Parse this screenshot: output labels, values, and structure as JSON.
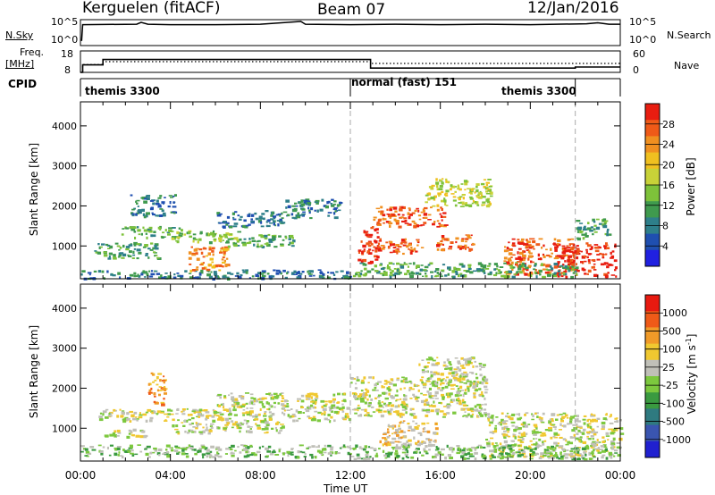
{
  "header": {
    "station": "Kerguelen (fitACF)",
    "beam": "Beam 07",
    "date": "12/Jan/2016"
  },
  "labels": {
    "nsky": "N.Sky",
    "nsearch": "N.Search",
    "freq": "Freq.",
    "mhz": "[MHz]",
    "nave": "Nave",
    "cpid": "CPID",
    "time_axis": "Time UT"
  },
  "cpid_segments": [
    {
      "label": "themis 3300",
      "start_h": 0,
      "end_h": 12
    },
    {
      "label": "normal (fast) 151",
      "start_h": 12,
      "end_h": 22
    },
    {
      "label": "themis 3300",
      "start_h": 22,
      "end_h": 24
    }
  ],
  "colors": {
    "power_scale": [
      "#2020e0",
      "#1f4fb0",
      "#2e7f8a",
      "#3f9a4e",
      "#7ec23a",
      "#c8d238",
      "#f0c020",
      "#f09020",
      "#ef5a18",
      "#e81d10"
    ],
    "velocity_scale": [
      "#2020d0",
      "#3a55b0",
      "#2f7a80",
      "#3a9a40",
      "#7cc83e",
      "#c0c0b8",
      "#f0c830",
      "#f09a28",
      "#ef5a18",
      "#e81a10"
    ]
  },
  "chart_data": [
    {
      "type": "line",
      "name": "noise",
      "ylabel_left": "N.Sky",
      "ylabel_right": "N.Search",
      "y_ticks_left": [
        "10^5",
        "10^0"
      ],
      "y_ticks_right": [
        "10^5",
        "10^0"
      ],
      "log_scale": true,
      "xlim": [
        0,
        24
      ],
      "series": [
        {
          "name": "N.Sky",
          "style": "solid",
          "values_desc": "near constant high level with spikes",
          "x": [
            0.05,
            0.1,
            2.5,
            2.7,
            3.0,
            4.0,
            6.0,
            8.0,
            9.8,
            10.0,
            12.0,
            14.0,
            16.0,
            18.0,
            20.0,
            22.5,
            23.0,
            23.5,
            24.0
          ],
          "y": [
            1,
            4.5,
            4.6,
            5.0,
            4.6,
            4.5,
            4.5,
            4.6,
            5.2,
            4.6,
            4.5,
            4.6,
            4.5,
            4.6,
            4.5,
            4.7,
            4.9,
            4.6,
            4.6
          ]
        }
      ]
    },
    {
      "type": "line",
      "name": "freq_nave",
      "ylabel_left": "Freq. [MHz]",
      "ylabel_right": "Nave",
      "y_ticks_left": [
        "18",
        "8"
      ],
      "y_ticks_right": [
        "60",
        "0"
      ],
      "xlim": [
        0,
        24
      ],
      "series": [
        {
          "name": "Freq.",
          "style": "solid",
          "x": [
            0,
            0.1,
            0.1,
            1.0,
            1.0,
            11.9,
            11.9,
            12.9,
            12.9,
            22.0,
            22.0,
            24
          ],
          "y": [
            8,
            8,
            11.5,
            11.5,
            14,
            14,
            14,
            14,
            10,
            10,
            10.5,
            10.5
          ]
        },
        {
          "name": "Nave",
          "style": "dotted",
          "x": [
            0,
            0.1,
            0.1,
            1.0,
            1.0,
            12.9,
            12.9,
            24
          ],
          "y": [
            0,
            0,
            22,
            22,
            30,
            30,
            25,
            25
          ]
        }
      ]
    },
    {
      "type": "heatmap",
      "name": "power",
      "ylabel": "Slant Range [km]",
      "colorbar_label": "Power [dB]",
      "colorbar_ticks": [
        "28",
        "24",
        "20",
        "16",
        "12",
        "8",
        "4"
      ],
      "xlim": [
        0,
        24
      ],
      "ylim": [
        180,
        4600
      ],
      "y_ticks": [
        "1000",
        "2000",
        "3000",
        "4000"
      ],
      "x_ticks": [
        "00:00",
        "04:00",
        "08:00",
        "12:00",
        "16:00",
        "20:00",
        "00:00"
      ],
      "regions": [
        {
          "t": [
            0.0,
            12.0
          ],
          "r": [
            200,
            420
          ],
          "level": 2
        },
        {
          "t": [
            0.6,
            3.5
          ],
          "r": [
            700,
            1100
          ],
          "level": 3
        },
        {
          "t": [
            1.8,
            4.5
          ],
          "r": [
            1200,
            1500
          ],
          "level": 3
        },
        {
          "t": [
            2.2,
            4.2
          ],
          "r": [
            1750,
            2300
          ],
          "level": 2
        },
        {
          "t": [
            4.0,
            7.0
          ],
          "r": [
            1100,
            1400
          ],
          "level": 4
        },
        {
          "t": [
            4.8,
            6.5
          ],
          "r": [
            400,
            1000
          ],
          "level": 7
        },
        {
          "t": [
            6.5,
            9.5
          ],
          "r": [
            1000,
            1300
          ],
          "level": 3
        },
        {
          "t": [
            6.0,
            9.0
          ],
          "r": [
            1500,
            1900
          ],
          "level": 2
        },
        {
          "t": [
            9.0,
            11.5
          ],
          "r": [
            1700,
            2200
          ],
          "level": 2
        },
        {
          "t": [
            12.3,
            13.2
          ],
          "r": [
            600,
            1500
          ],
          "level": 9
        },
        {
          "t": [
            13.0,
            16.2
          ],
          "r": [
            1500,
            2000
          ],
          "level": 8
        },
        {
          "t": [
            13.2,
            15.2
          ],
          "r": [
            800,
            1200
          ],
          "level": 8
        },
        {
          "t": [
            15.3,
            18.2
          ],
          "r": [
            2000,
            2700
          ],
          "level": 5
        },
        {
          "t": [
            15.8,
            17.5
          ],
          "r": [
            900,
            1300
          ],
          "level": 8
        },
        {
          "t": [
            18.8,
            22.0
          ],
          "r": [
            300,
            1200
          ],
          "level": 8
        },
        {
          "t": [
            21.0,
            23.8
          ],
          "r": [
            250,
            1100
          ],
          "level": 9
        },
        {
          "t": [
            22.0,
            23.5
          ],
          "r": [
            1200,
            1700
          ],
          "level": 3
        },
        {
          "t": [
            12.0,
            22.0
          ],
          "r": [
            250,
            600
          ],
          "level": 3
        }
      ]
    },
    {
      "type": "heatmap",
      "name": "velocity",
      "ylabel": "Slant Range [km]",
      "colorbar_label": "Velocity [m s^-1]",
      "colorbar_ticks": [
        "1000",
        "500",
        "100",
        "25",
        "-25",
        "-100",
        "-500",
        "-1000"
      ],
      "xlim": [
        0,
        24
      ],
      "ylim": [
        180,
        4600
      ],
      "y_ticks": [
        "1000",
        "2000",
        "3000",
        "4000"
      ],
      "x_ticks": [
        "00:00",
        "04:00",
        "08:00",
        "12:00",
        "16:00",
        "20:00",
        "00:00"
      ],
      "regions": [
        {
          "t": [
            0.0,
            12.0
          ],
          "r": [
            300,
            600
          ],
          "level": 4
        },
        {
          "t": [
            0.8,
            12.0
          ],
          "r": [
            1200,
            1500
          ],
          "level": 5
        },
        {
          "t": [
            1.0,
            3.0
          ],
          "r": [
            800,
            1000
          ],
          "level": 5
        },
        {
          "t": [
            3.0,
            3.8
          ],
          "r": [
            1600,
            2400
          ],
          "level": 7
        },
        {
          "t": [
            4.0,
            9.0
          ],
          "r": [
            900,
            1200
          ],
          "level": 5
        },
        {
          "t": [
            6.0,
            12.0
          ],
          "r": [
            1500,
            1900
          ],
          "level": 5
        },
        {
          "t": [
            12.0,
            18.0
          ],
          "r": [
            1300,
            2300
          ],
          "level": 5
        },
        {
          "t": [
            13.2,
            15.8
          ],
          "r": [
            600,
            1200
          ],
          "level": 6
        },
        {
          "t": [
            15.0,
            18.0
          ],
          "r": [
            2100,
            2800
          ],
          "level": 5
        },
        {
          "t": [
            18.0,
            24.0
          ],
          "r": [
            300,
            1400
          ],
          "level": 5
        },
        {
          "t": [
            12.0,
            24.0
          ],
          "r": [
            250,
            600
          ],
          "level": 4
        }
      ]
    }
  ]
}
